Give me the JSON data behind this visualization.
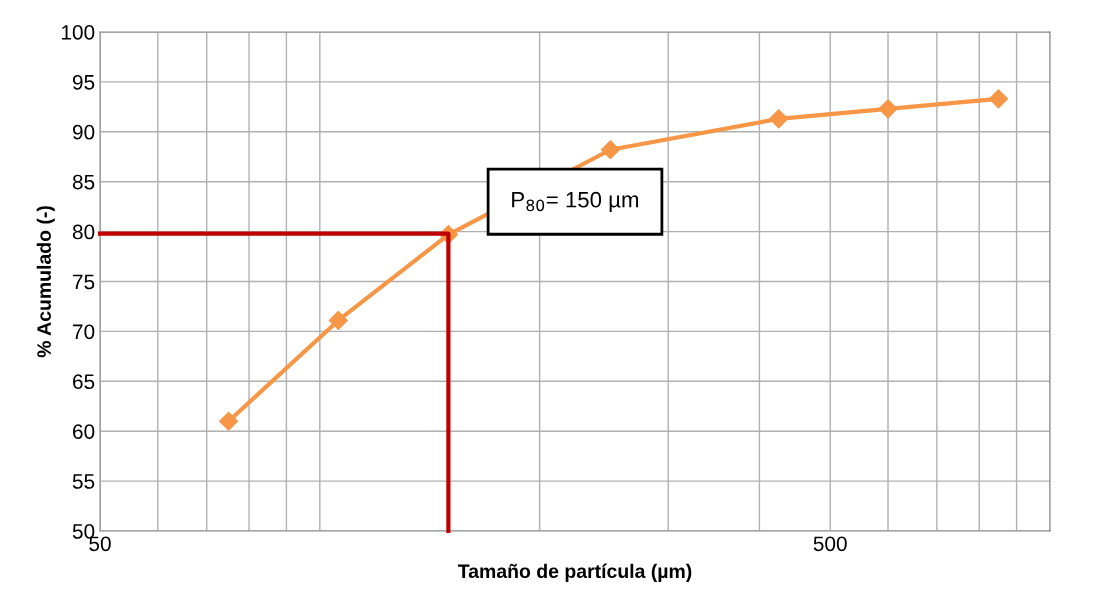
{
  "chart_data": {
    "type": "line",
    "xlabel": "Tamaño de partícula (µm)",
    "ylabel": "% Acumulado (-)",
    "log": "x",
    "xlim": [
      50,
      1000
    ],
    "ylim": [
      50,
      100
    ],
    "xticks": [
      50,
      {
        "value": 60,
        "label": null
      },
      {
        "value": 70,
        "label": null
      },
      {
        "value": 80,
        "label": null
      },
      {
        "value": 90,
        "label": null
      },
      {
        "value": 100,
        "label": null
      },
      {
        "value": 200,
        "label": null
      },
      {
        "value": 300,
        "label": null
      },
      {
        "value": 400,
        "label": null
      },
      500,
      {
        "value": 600,
        "label": null
      },
      {
        "value": 700,
        "label": null
      },
      {
        "value": 800,
        "label": null
      },
      {
        "value": 900,
        "label": null
      },
      {
        "value": 1000,
        "label": null
      }
    ],
    "yticks": [
      50,
      55,
      60,
      65,
      70,
      75,
      80,
      85,
      90,
      95,
      100
    ],
    "grid": true,
    "series": [
      {
        "color": "#f79646",
        "marker": "diamond",
        "x": [
          75,
          106,
          150,
          250,
          425,
          600,
          850
        ],
        "values": [
          61.0,
          71.1,
          79.7,
          88.2,
          91.3,
          92.3,
          93.3
        ]
      },
      {
        "color": "#c00000",
        "marker": "none",
        "x": [
          50,
          150,
          150
        ],
        "values": [
          79.8,
          79.8,
          50
        ]
      }
    ],
    "annotations": [
      "P$_{80}$= 150 µm"
    ]
  }
}
